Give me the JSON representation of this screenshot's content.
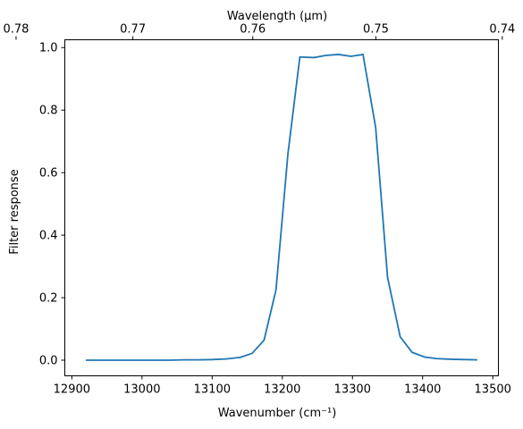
{
  "chart_data": {
    "type": "line",
    "xlabel": "Wavenumber (cm⁻¹)",
    "ylabel": "Filter response",
    "top_xlabel": "Wavelength (μm)",
    "xlim": [
      12890,
      13508
    ],
    "ylim": [
      -0.05,
      1.025
    ],
    "grid": false,
    "x_ticks": [
      12900,
      13000,
      13100,
      13200,
      13300,
      13400,
      13500
    ],
    "y_ticks": [
      0.0,
      0.2,
      0.4,
      0.6,
      0.8,
      1.0
    ],
    "y_tick_labels": [
      "0.0",
      "0.2",
      "0.4",
      "0.6",
      "0.8",
      "1.0"
    ],
    "top_ticks": [
      0.78,
      0.77,
      0.76,
      0.75,
      0.74
    ],
    "top_ticks_extra": [
      0.76,
      0.75
    ],
    "top_tick_labels": [
      "0.78",
      "0.77",
      "0.76",
      "0.76",
      "0.75",
      "0.75",
      "0.74"
    ],
    "top_tick_values": [
      0.78,
      0.77,
      0.765,
      0.76,
      0.755,
      0.75,
      0.74
    ],
    "series": [
      {
        "color": "#1f77b4",
        "x": [
          12920,
          12940,
          12960,
          12980,
          13000,
          13020,
          13040,
          13060,
          13080,
          13100,
          13120,
          13140,
          13157,
          13174,
          13191,
          13208,
          13225,
          13245,
          13262,
          13280,
          13298,
          13315,
          13333,
          13350,
          13368,
          13385,
          13403,
          13420,
          13440,
          13460,
          13478
        ],
        "values": [
          0.0,
          0.0,
          0.0,
          0.0,
          0.0,
          0.0,
          0.0,
          0.001,
          0.001,
          0.002,
          0.004,
          0.009,
          0.022,
          0.064,
          0.225,
          0.66,
          0.97,
          0.968,
          0.975,
          0.978,
          0.972,
          0.978,
          0.745,
          0.265,
          0.075,
          0.025,
          0.01,
          0.005,
          0.003,
          0.002,
          0.001
        ]
      }
    ]
  }
}
